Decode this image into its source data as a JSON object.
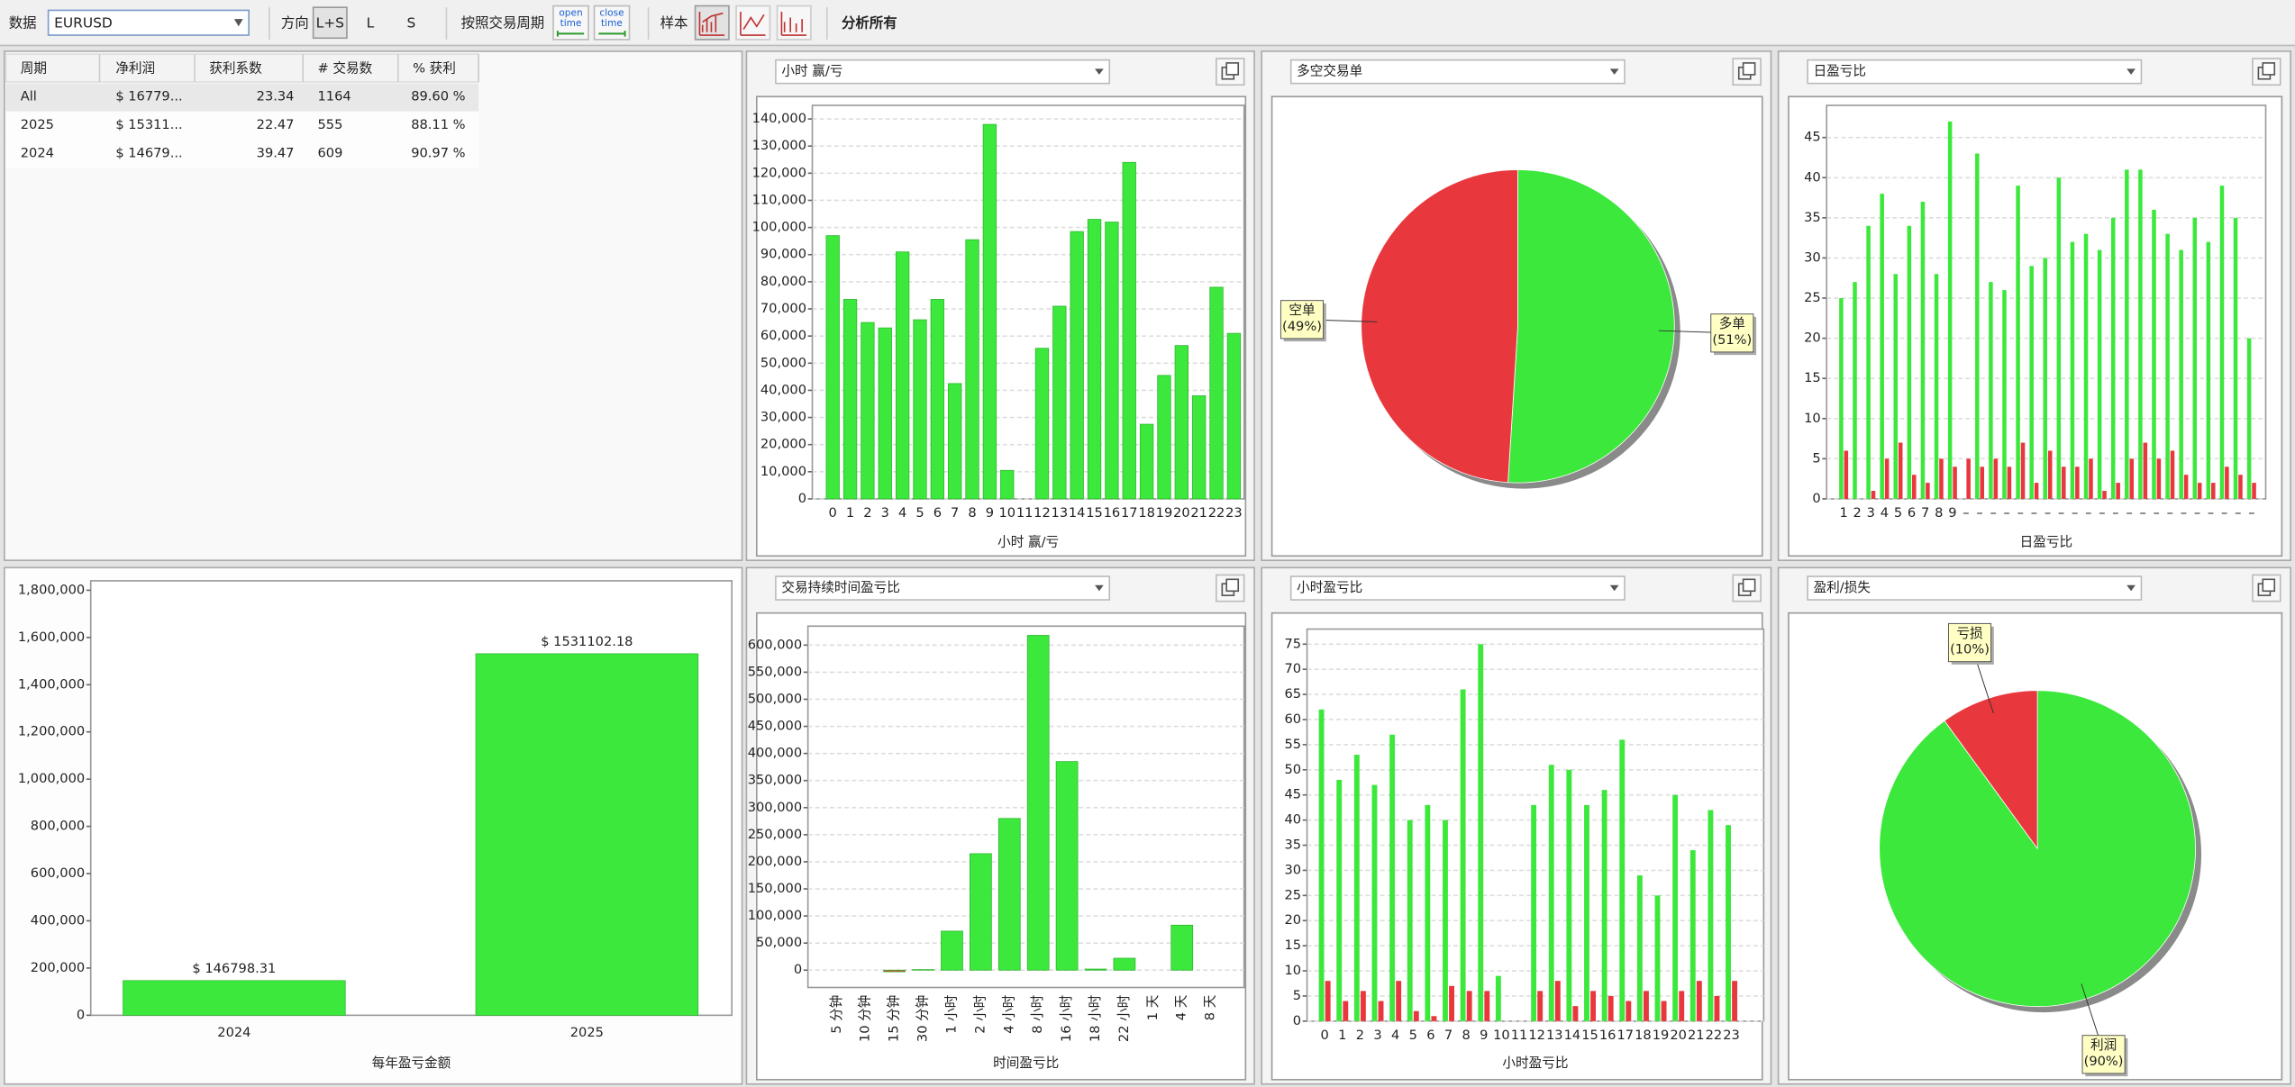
{
  "toolbar": {
    "data_label": "数据",
    "symbol": "EURUSD",
    "direction_label": "方向",
    "directions": [
      "L+S",
      "L",
      "S"
    ],
    "period_label": "按照交易周期",
    "open_time": [
      "open",
      "time"
    ],
    "close_time": [
      "close",
      "time"
    ],
    "sample_label": "样本",
    "analyze": "分析所有"
  },
  "table": {
    "headers": [
      "周期",
      "净利润",
      "获利系数",
      "# 交易数",
      "% 获利"
    ],
    "rows": [
      [
        "All",
        "$ 16779...",
        "23.34",
        "1164",
        "89.60 %"
      ],
      [
        "2025",
        "$ 15311...",
        "22.47",
        "555",
        "88.11 %"
      ],
      [
        "2024",
        "$ 14679...",
        "39.47",
        "609",
        "90.97 %"
      ]
    ]
  },
  "chart_data": [
    {
      "type": "bar",
      "title": "小时 赢/亏",
      "xlabel": "小时 赢/亏",
      "categories": [
        "0",
        "1",
        "2",
        "3",
        "4",
        "5",
        "6",
        "7",
        "8",
        "9",
        "10",
        "11",
        "12",
        "13",
        "14",
        "15",
        "16",
        "17",
        "18",
        "19",
        "20",
        "21",
        "22",
        "23"
      ],
      "values": [
        97000,
        73500,
        65000,
        63000,
        91000,
        66000,
        73500,
        42500,
        95500,
        138000,
        10500,
        0,
        55500,
        71000,
        98500,
        103000,
        102000,
        124000,
        27500,
        45500,
        56500,
        38000,
        78000,
        61000
      ],
      "color": "#3de83d",
      "ylim": [
        0,
        145000
      ],
      "yticks": [
        0,
        {
          "value": 10000,
          "label": "10,000"
        },
        {
          "value": 20000,
          "label": "20,000"
        },
        {
          "value": 30000,
          "label": "30,000"
        },
        {
          "value": 40000,
          "label": "40,000"
        },
        {
          "value": 50000,
          "label": "50,000"
        },
        {
          "value": 60000,
          "label": "60,000"
        },
        {
          "value": 70000,
          "label": "70,000"
        },
        {
          "value": 80000,
          "label": "80,000"
        },
        {
          "value": 90000,
          "label": "90,000"
        },
        {
          "value": 100000,
          "label": "100,000"
        },
        {
          "value": 110000,
          "label": "110,000"
        },
        {
          "value": 120000,
          "label": "120,000"
        },
        {
          "value": 130000,
          "label": "130,000"
        },
        {
          "value": 140000,
          "label": "140,000"
        }
      ],
      "grid": true
    },
    {
      "type": "pie",
      "title": "多空交易单",
      "categories": [
        "多单",
        "空单"
      ],
      "values": [
        51,
        49
      ],
      "value_labels": [
        "(51%)",
        "(49%)"
      ],
      "colors": [
        "#3de83d",
        "#e8383d"
      ]
    },
    {
      "type": "bar",
      "title": "日盈亏比",
      "xlabel": "日盈亏比",
      "categories": [
        "1",
        "2",
        "3",
        "4",
        "5",
        "6",
        "7",
        "8",
        "9",
        "–",
        "–",
        "–",
        "–",
        "–",
        "–",
        "–",
        "–",
        "–",
        "–",
        "–",
        "–",
        "–",
        "–",
        "–",
        "–",
        "–",
        "–",
        "–",
        "–",
        "–",
        "–"
      ],
      "series": [
        {
          "color": "#3de83d",
          "values": [
            25,
            27,
            34,
            38,
            28,
            34,
            37,
            28,
            47,
            0,
            43,
            27,
            26,
            39,
            29,
            30,
            40,
            32,
            33,
            31,
            35,
            41,
            41,
            36,
            33,
            31,
            35,
            32,
            39,
            35,
            20
          ]
        },
        {
          "color": "#e8383d",
          "values": [
            6,
            0,
            1,
            5,
            7,
            3,
            2,
            5,
            4,
            5,
            4,
            5,
            4,
            7,
            2,
            6,
            4,
            4,
            5,
            1,
            2,
            5,
            7,
            5,
            6,
            3,
            2,
            2,
            4,
            3,
            2
          ]
        }
      ],
      "ylim": [
        0,
        49
      ],
      "yticks": [
        0,
        5,
        10,
        15,
        20,
        25,
        30,
        35,
        40,
        45
      ],
      "grid": true
    },
    {
      "type": "bar",
      "xlabel": "每年盈亏金额",
      "categories": [
        "2024",
        "2025"
      ],
      "values": [
        146798.31,
        1531102.18
      ],
      "value_labels": [
        "$ 146798.31",
        "$ 1531102.18"
      ],
      "color": "#3de83d",
      "ylim": [
        0,
        1840000
      ],
      "yticks": [
        0,
        {
          "value": 200000,
          "label": "200,000"
        },
        {
          "value": 400000,
          "label": "400,000"
        },
        {
          "value": 600000,
          "label": "600,000"
        },
        {
          "value": 800000,
          "label": "800,000"
        },
        {
          "value": 1000000,
          "label": "1,000,000"
        },
        {
          "value": 1200000,
          "label": "1,200,000"
        },
        {
          "value": 1400000,
          "label": "1,400,000"
        },
        {
          "value": 1600000,
          "label": "1,600,000"
        },
        {
          "value": 1800000,
          "label": "1,800,000"
        }
      ],
      "grid": false
    },
    {
      "type": "bar",
      "title": "交易持续时间盈亏比",
      "xlabel": "时间盈亏比",
      "categories": [
        "5 分钟",
        "10 分钟",
        "15 分钟",
        "30 分钟",
        "1 小时",
        "2 小时",
        "4 小时",
        "8 小时",
        "16 小时",
        "18 小时",
        "22 小时",
        "1 天",
        "4 天",
        "8 天"
      ],
      "values": [
        0,
        0,
        -3000,
        1000,
        72000,
        215000,
        280000,
        618000,
        385000,
        2000,
        22000,
        0,
        83000,
        0
      ],
      "color": "#3de83d",
      "negative_color": "#e8383d",
      "rotate_labels": true,
      "ylim": [
        -32000,
        635000
      ],
      "yticks": [
        0,
        {
          "value": 50000,
          "label": "50,000"
        },
        {
          "value": 100000,
          "label": "100,000"
        },
        {
          "value": 150000,
          "label": "150,000"
        },
        {
          "value": 200000,
          "label": "200,000"
        },
        {
          "value": 250000,
          "label": "250,000"
        },
        {
          "value": 300000,
          "label": "300,000"
        },
        {
          "value": 350000,
          "label": "350,000"
        },
        {
          "value": 400000,
          "label": "400,000"
        },
        {
          "value": 450000,
          "label": "450,000"
        },
        {
          "value": 500000,
          "label": "500,000"
        },
        {
          "value": 550000,
          "label": "550,000"
        },
        {
          "value": 600000,
          "label": "600,000"
        }
      ],
      "grid": true
    },
    {
      "type": "bar",
      "title": "小时盈亏比",
      "xlabel": "小时盈亏比",
      "categories": [
        "0",
        "1",
        "2",
        "3",
        "4",
        "5",
        "6",
        "7",
        "8",
        "9",
        "10",
        "11",
        "12",
        "13",
        "14",
        "15",
        "16",
        "17",
        "18",
        "19",
        "20",
        "21",
        "22",
        "23"
      ],
      "series": [
        {
          "color": "#3de83d",
          "values": [
            62,
            48,
            53,
            47,
            57,
            40,
            43,
            40,
            66,
            75,
            9,
            0,
            43,
            51,
            50,
            43,
            46,
            56,
            29,
            25,
            45,
            34,
            42,
            39
          ]
        },
        {
          "color": "#e8383d",
          "values": [
            8,
            4,
            6,
            4,
            8,
            2,
            1,
            7,
            6,
            6,
            0,
            0,
            6,
            8,
            3,
            6,
            5,
            4,
            6,
            4,
            6,
            8,
            5,
            8
          ]
        }
      ],
      "ylim": [
        0,
        78
      ],
      "yticks": [
        0,
        5,
        10,
        15,
        20,
        25,
        30,
        35,
        40,
        45,
        50,
        55,
        60,
        65,
        70,
        75
      ],
      "grid": true
    },
    {
      "type": "pie",
      "title": "盈利/损失",
      "categories": [
        "利润",
        "亏损"
      ],
      "values": [
        90,
        10
      ],
      "value_labels": [
        "(90%)",
        "(10%)"
      ],
      "colors": [
        "#3de83d",
        "#e8383d"
      ]
    }
  ]
}
